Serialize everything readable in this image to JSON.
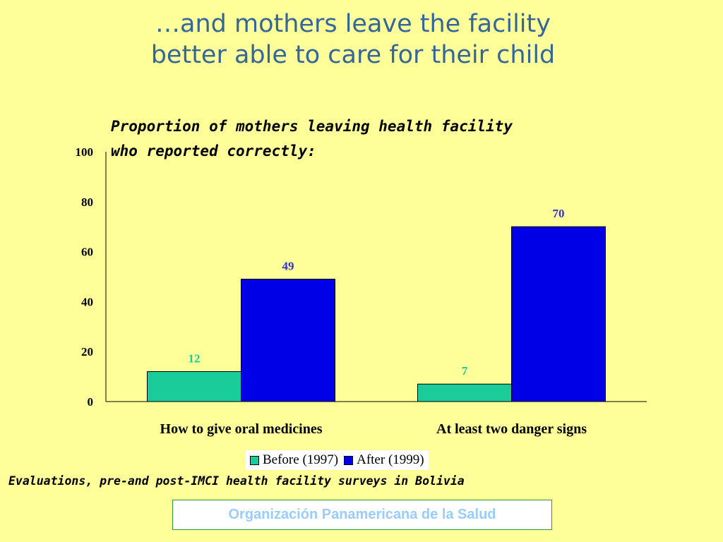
{
  "slide": {
    "title_line1": "…and mothers leave the facility",
    "title_line2": "better able to care for their child",
    "source_note": "Evaluations, pre-and post-IMCI health facility surveys in Bolivia",
    "organization": "Organización Panamericana de la Salud"
  },
  "chart_data": {
    "type": "bar",
    "title_line1": "Proportion of mothers leaving health facility",
    "title_line2": "who reported correctly:",
    "xlabel": "",
    "ylabel": "",
    "ylim": [
      0,
      100
    ],
    "yticks": [
      "0",
      "20",
      "40",
      "60",
      "80",
      "100"
    ],
    "categories": [
      "How to give oral medicines",
      "At least two danger signs"
    ],
    "series": [
      {
        "name": "Before (1997)",
        "values": [
          12,
          7
        ],
        "color": "#1ACC99",
        "label_color": "#1ACC99"
      },
      {
        "name": "After (1999)",
        "values": [
          49,
          70
        ],
        "color": "#0000E6",
        "label_color": "#3333CC"
      }
    ],
    "grid": false,
    "legend_position": "bottom"
  },
  "colors": {
    "background": "#FFFF99",
    "title": "#336699",
    "org_text": "#99CCFF",
    "org_border": "#339933"
  }
}
